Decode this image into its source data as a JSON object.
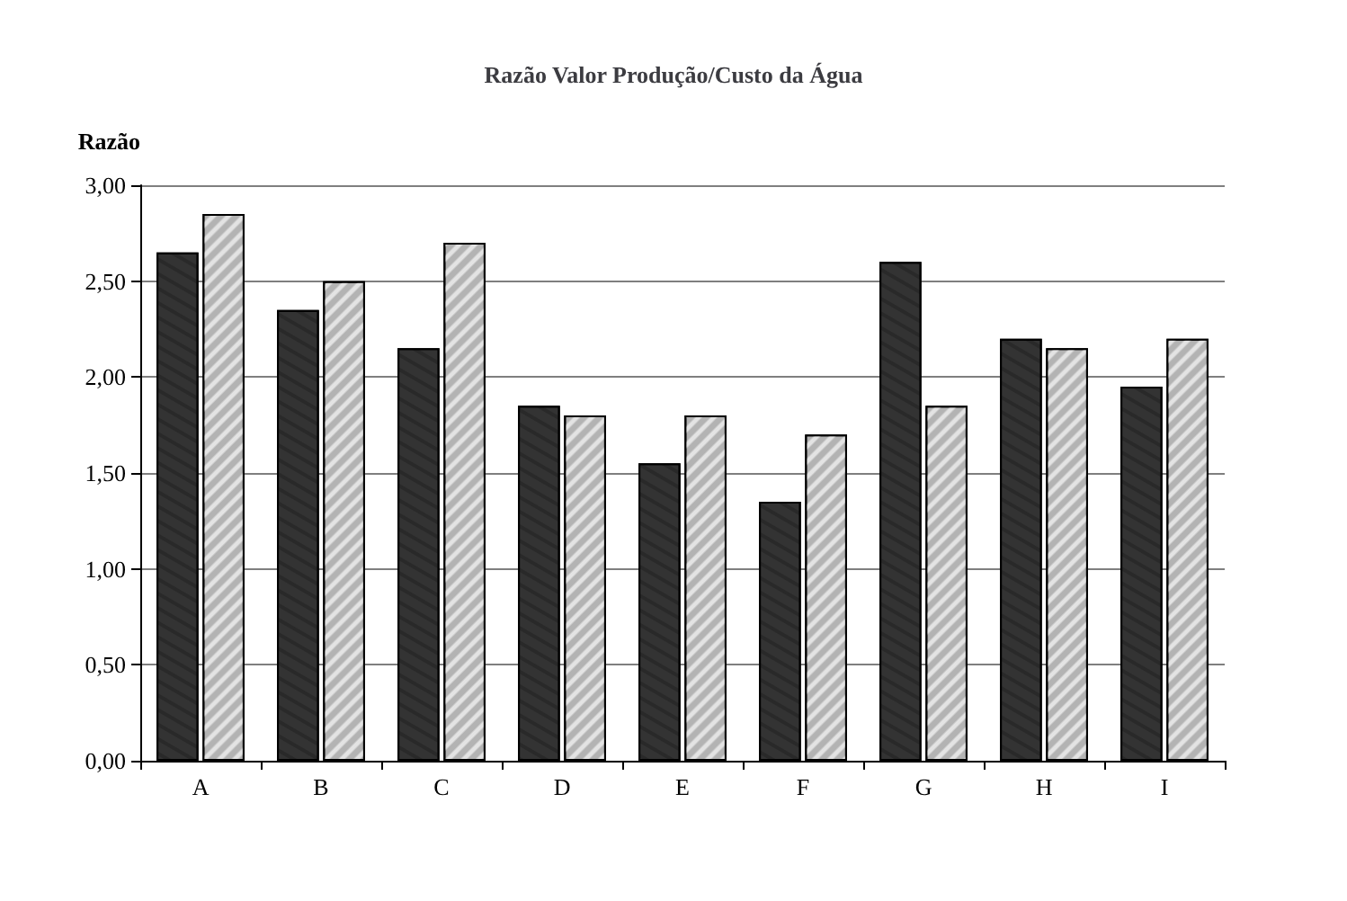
{
  "chart_data": {
    "type": "bar",
    "title": "Razão Valor Produção/Custo da Água",
    "ylabel": "Razão",
    "categories": [
      "A",
      "B",
      "C",
      "D",
      "E",
      "F",
      "G",
      "H",
      "I"
    ],
    "series": [
      {
        "color": "#333333",
        "values": [
          2.65,
          2.35,
          2.15,
          1.85,
          1.55,
          1.35,
          2.6,
          2.2,
          1.95
        ]
      },
      {
        "color": "#b3b3b3",
        "values": [
          2.85,
          2.5,
          2.7,
          1.8,
          1.8,
          1.7,
          1.85,
          2.15,
          2.2
        ]
      }
    ],
    "ylim": [
      0,
      3
    ],
    "yticks": [
      {
        "value": 0,
        "label": "0,00"
      },
      {
        "value": 0.5,
        "label": "0,50"
      },
      {
        "value": 1,
        "label": "1,00"
      },
      {
        "value": 1.5,
        "label": "1,50"
      },
      {
        "value": 2,
        "label": "2,00"
      },
      {
        "value": 2.5,
        "label": "2,50"
      },
      {
        "value": 3,
        "label": "3,00"
      }
    ],
    "grid": "y"
  }
}
